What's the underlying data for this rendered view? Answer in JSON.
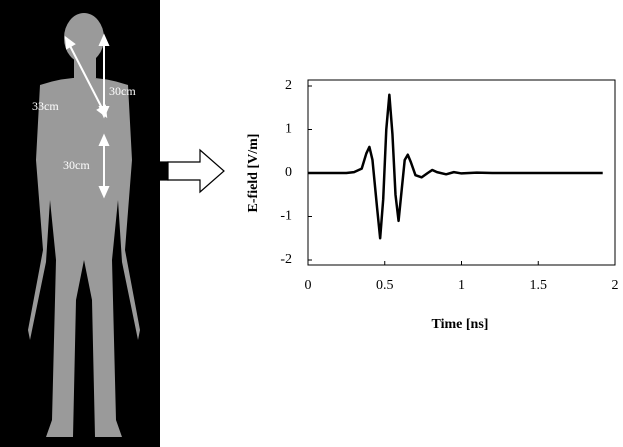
{
  "chart_data": {
    "type": "line",
    "xlabel": "Time  [ns]",
    "ylabel": "E-field  [V/m]",
    "x": [
      0,
      0.25,
      0.3,
      0.35,
      0.38,
      0.4,
      0.42,
      0.45,
      0.47,
      0.49,
      0.51,
      0.53,
      0.55,
      0.57,
      0.59,
      0.61,
      0.63,
      0.65,
      0.67,
      0.7,
      0.74,
      0.78,
      0.81,
      0.84,
      0.9,
      0.95,
      1.0,
      1.1,
      1.2,
      1.5,
      1.92
    ],
    "series": [
      {
        "color": "#000000",
        "values": [
          0,
          0,
          0.02,
          0.1,
          0.45,
          0.6,
          0.3,
          -0.8,
          -1.5,
          -0.6,
          1.0,
          1.8,
          0.9,
          -0.5,
          -1.1,
          -0.4,
          0.3,
          0.42,
          0.25,
          -0.05,
          -0.1,
          0.0,
          0.07,
          0.02,
          -0.03,
          0.02,
          -0.01,
          0.01,
          0,
          0,
          0
        ]
      }
    ],
    "xlim": [
      0,
      2
    ],
    "xticks": [
      0,
      0.5,
      1,
      1.5,
      2
    ],
    "ylim": [
      -2,
      2
    ],
    "yticks": [
      2,
      1,
      0,
      -1,
      -2
    ],
    "grid": false
  },
  "annotations": [
    "30cm",
    "33cm",
    "30cm"
  ]
}
